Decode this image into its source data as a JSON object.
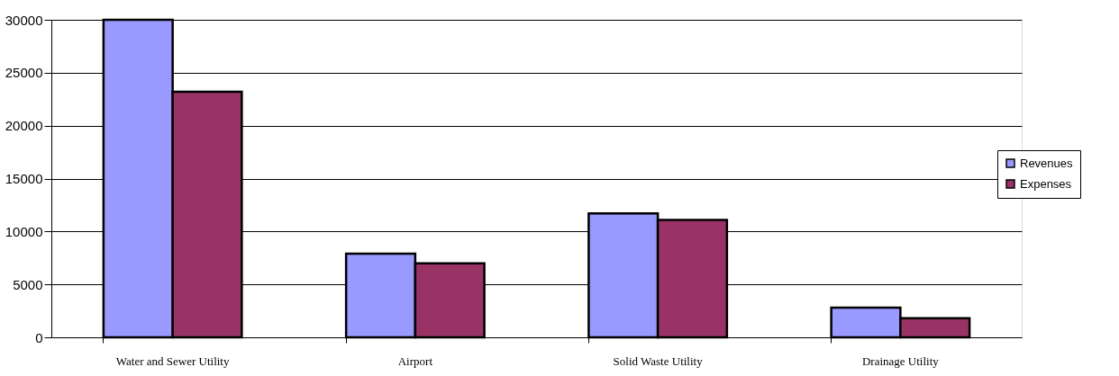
{
  "chart_data": {
    "type": "bar",
    "categories": [
      "Water and Sewer Utility",
      "Airport",
      "Solid Waste Utility",
      "Drainage Utility"
    ],
    "series": [
      {
        "name": "Revenues",
        "color": "#9999ff",
        "values": [
          30000,
          7900,
          11700,
          2800
        ]
      },
      {
        "name": "Expenses",
        "color": "#993366",
        "values": [
          23200,
          7000,
          11100,
          1800
        ]
      }
    ],
    "ylim": [
      0,
      30000
    ],
    "yticks": [
      0,
      5000,
      10000,
      15000,
      20000,
      25000,
      30000
    ],
    "grid": "y",
    "legend": "right"
  }
}
